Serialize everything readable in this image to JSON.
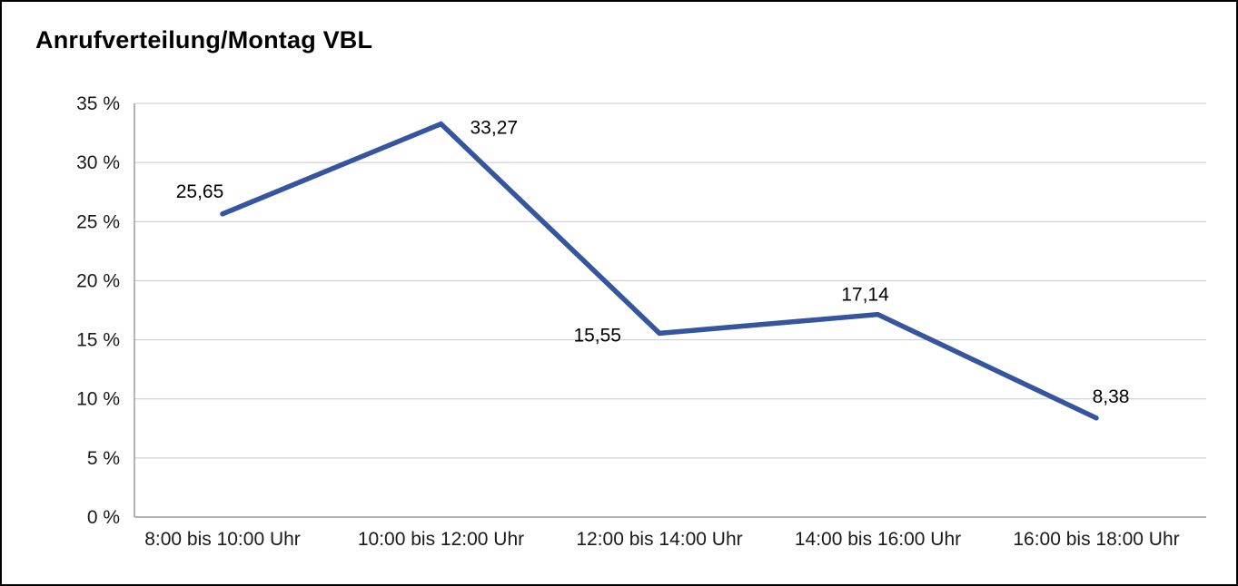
{
  "title": "Anrufverteilung/Montag VBL",
  "chart_data": {
    "type": "line",
    "title": "Anrufverteilung/Montag VBL",
    "categories": [
      "8:00 bis 10:00 Uhr",
      "10:00 bis 12:00 Uhr",
      "12:00 bis 14:00 Uhr",
      "14:00 bis 16:00 Uhr",
      "16:00 bis 18:00 Uhr"
    ],
    "values": [
      25.65,
      33.27,
      15.55,
      17.14,
      8.38
    ],
    "value_labels": [
      "25,65",
      "33,27",
      "15,55",
      "17,14",
      "8,38"
    ],
    "xlabel": "",
    "ylabel": "",
    "ylim": [
      0,
      35
    ],
    "ytick_step": 5,
    "ytick_labels": [
      "0 %",
      "5 %",
      "10 %",
      "15 %",
      "20 %",
      "25 %",
      "30 %",
      "35 %"
    ],
    "grid": true,
    "legend": "none",
    "line_color": "#35559E"
  },
  "colors": {
    "line": "#35559E",
    "gridline": "#c9c9c9",
    "axis": "#9b9b9b",
    "tick_text": "#1a1a1a",
    "label_text": "#000000",
    "border": "#000000",
    "background": "#ffffff"
  }
}
